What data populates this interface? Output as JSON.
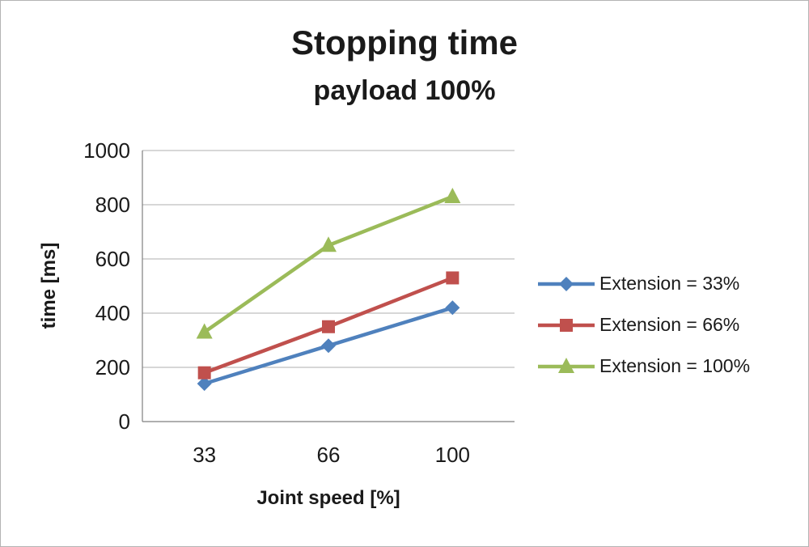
{
  "chart_data": {
    "type": "line",
    "title": "Stopping time",
    "subtitle": "payload 100%",
    "xlabel": "Joint speed [%]",
    "ylabel": "time [ms]",
    "categories": [
      "33",
      "66",
      "100"
    ],
    "series": [
      {
        "name": "Extension = 33%",
        "values": [
          140,
          280,
          420
        ],
        "color": "#4F81BD",
        "marker": "diamond"
      },
      {
        "name": "Extension = 66%",
        "values": [
          180,
          350,
          530
        ],
        "color": "#C0504D",
        "marker": "square"
      },
      {
        "name": "Extension = 100%",
        "values": [
          330,
          650,
          830
        ],
        "color": "#9BBB59",
        "marker": "triangle"
      }
    ],
    "ylim": [
      0,
      1000
    ],
    "ytick_step": 200,
    "grid": true,
    "legend_position": "right",
    "colors": {
      "gridline": "#bfbfbf",
      "axis_line": "#7f7f7f",
      "text": "#1a1a1a"
    }
  }
}
